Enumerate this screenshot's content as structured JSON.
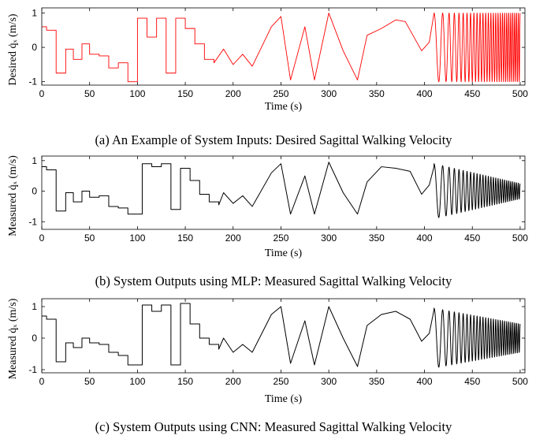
{
  "chart_data": [
    {
      "type": "line",
      "caption": "(a) An Example of System Inputs: Desired Sagittal Walking Velocity",
      "xlabel": "Time (s)",
      "ylabel": "Desired q̇ₓ (m/s)",
      "xlim": [
        0,
        505
      ],
      "ylim": [
        -1.1,
        1.15
      ],
      "xticks": [
        0,
        50,
        100,
        150,
        200,
        250,
        300,
        350,
        400,
        450,
        500
      ],
      "yticks": [
        -1,
        0,
        1
      ],
      "grid": false,
      "series": [
        {
          "color": "#ff0000",
          "segments": [
            {
              "kind": "steps",
              "points": [
                [
                  0,
                  0.6
                ],
                [
                  5,
                  0.5
                ],
                [
                  15,
                  -0.75
                ],
                [
                  25,
                  -0.05
                ],
                [
                  33,
                  -0.35
                ],
                [
                  42,
                  0.1
                ],
                [
                  50,
                  -0.2
                ],
                [
                  60,
                  -0.25
                ],
                [
                  70,
                  -0.6
                ],
                [
                  80,
                  -0.45
                ],
                [
                  90,
                  -1.0
                ],
                [
                  100,
                  0.85
                ],
                [
                  110,
                  0.3
                ],
                [
                  120,
                  0.85
                ],
                [
                  130,
                  -0.75
                ],
                [
                  140,
                  0.85
                ],
                [
                  150,
                  0.55
                ],
                [
                  160,
                  0.1
                ],
                [
                  170,
                  -0.35
                ],
                [
                  180,
                  -0.45
                ]
              ]
            },
            {
              "kind": "polyline",
              "points": [
                [
                  190,
                  -0.05
                ],
                [
                  200,
                  -0.5
                ],
                [
                  210,
                  -0.2
                ],
                [
                  220,
                  -0.55
                ],
                [
                  240,
                  0.6
                ],
                [
                  250,
                  0.9
                ],
                [
                  260,
                  -0.95
                ],
                [
                  275,
                  0.6
                ],
                [
                  285,
                  -0.95
                ],
                [
                  300,
                  1.0
                ],
                [
                  315,
                  -0.1
                ],
                [
                  330,
                  -0.95
                ],
                [
                  340,
                  0.35
                ],
                [
                  355,
                  0.55
                ],
                [
                  370,
                  0.8
                ],
                [
                  380,
                  0.75
                ],
                [
                  397,
                  -0.1
                ],
                [
                  405,
                  0.15
                ],
                [
                  410,
                  1.0
                ]
              ]
            },
            {
              "kind": "chirp",
              "t0": 410,
              "t1": 500,
              "amplitude": 1.0,
              "cycles": 28
            }
          ]
        }
      ]
    },
    {
      "type": "line",
      "caption": "(b) System Outputs using MLP: Measured Sagittal Walking Velocity",
      "xlabel": "Time (s)",
      "ylabel": "Measured q̇ₓ (m/s)",
      "xlim": [
        0,
        505
      ],
      "ylim": [
        -1.25,
        1.15
      ],
      "xticks": [
        0,
        50,
        100,
        150,
        200,
        250,
        300,
        350,
        400,
        450,
        500
      ],
      "yticks": [
        -1,
        0,
        1
      ],
      "grid": false,
      "series": [
        {
          "color": "#000000",
          "segments": [
            {
              "kind": "steps",
              "points": [
                [
                  0,
                  0.8
                ],
                [
                  5,
                  0.7
                ],
                [
                  15,
                  -0.65
                ],
                [
                  25,
                  -0.05
                ],
                [
                  33,
                  -0.35
                ],
                [
                  42,
                  0.0
                ],
                [
                  50,
                  -0.2
                ],
                [
                  60,
                  -0.15
                ],
                [
                  70,
                  -0.5
                ],
                [
                  80,
                  -0.55
                ],
                [
                  90,
                  -0.75
                ],
                [
                  105,
                  0.9
                ],
                [
                  115,
                  0.8
                ],
                [
                  125,
                  0.9
                ],
                [
                  135,
                  -0.6
                ],
                [
                  145,
                  0.75
                ],
                [
                  155,
                  0.35
                ],
                [
                  165,
                  -0.1
                ],
                [
                  175,
                  -0.35
                ],
                [
                  185,
                  -0.45
                ]
              ]
            },
            {
              "kind": "polyline",
              "points": [
                [
                  190,
                  -0.05
                ],
                [
                  200,
                  -0.4
                ],
                [
                  210,
                  -0.15
                ],
                [
                  220,
                  -0.5
                ],
                [
                  240,
                  0.6
                ],
                [
                  250,
                  0.9
                ],
                [
                  260,
                  -0.75
                ],
                [
                  275,
                  0.5
                ],
                [
                  285,
                  -0.75
                ],
                [
                  300,
                  0.95
                ],
                [
                  315,
                  -0.05
                ],
                [
                  330,
                  -0.75
                ],
                [
                  340,
                  0.3
                ],
                [
                  355,
                  0.8
                ],
                [
                  370,
                  0.75
                ],
                [
                  385,
                  0.65
                ],
                [
                  397,
                  -0.1
                ],
                [
                  405,
                  0.2
                ],
                [
                  410,
                  0.8
                ]
              ]
            },
            {
              "kind": "chirp",
              "t0": 410,
              "t1": 500,
              "amplitude": 0.9,
              "amplitude_end": 0.25,
              "cycles": 28
            }
          ]
        }
      ]
    },
    {
      "type": "line",
      "caption": "(c) System Outputs using CNN: Measured Sagittal Walking Velocity",
      "xlabel": "Time (s)",
      "ylabel": "Measured q̇ₓ (m/s)",
      "xlim": [
        0,
        505
      ],
      "ylim": [
        -1.1,
        1.25
      ],
      "xticks": [
        0,
        50,
        100,
        150,
        200,
        250,
        300,
        350,
        400,
        450,
        500
      ],
      "yticks": [
        -1,
        0,
        1
      ],
      "grid": false,
      "series": [
        {
          "color": "#000000",
          "segments": [
            {
              "kind": "steps",
              "points": [
                [
                  0,
                  0.7
                ],
                [
                  5,
                  0.6
                ],
                [
                  15,
                  -0.75
                ],
                [
                  25,
                  -0.15
                ],
                [
                  33,
                  -0.3
                ],
                [
                  42,
                  0.0
                ],
                [
                  50,
                  -0.15
                ],
                [
                  60,
                  -0.2
                ],
                [
                  70,
                  -0.45
                ],
                [
                  80,
                  -0.55
                ],
                [
                  90,
                  -0.85
                ],
                [
                  105,
                  1.05
                ],
                [
                  115,
                  0.85
                ],
                [
                  125,
                  1.05
                ],
                [
                  135,
                  -0.85
                ],
                [
                  145,
                  1.1
                ],
                [
                  155,
                  0.45
                ],
                [
                  165,
                  0.0
                ],
                [
                  175,
                  -0.2
                ],
                [
                  185,
                  -0.35
                ]
              ]
            },
            {
              "kind": "polyline",
              "points": [
                [
                  190,
                  0.0
                ],
                [
                  200,
                  -0.45
                ],
                [
                  210,
                  -0.2
                ],
                [
                  220,
                  -0.45
                ],
                [
                  240,
                  0.75
                ],
                [
                  250,
                  1.0
                ],
                [
                  260,
                  -0.8
                ],
                [
                  275,
                  0.55
                ],
                [
                  285,
                  -0.85
                ],
                [
                  300,
                  1.0
                ],
                [
                  315,
                  0.0
                ],
                [
                  330,
                  -0.9
                ],
                [
                  340,
                  0.4
                ],
                [
                  355,
                  0.75
                ],
                [
                  370,
                  0.85
                ],
                [
                  385,
                  0.6
                ],
                [
                  397,
                  -0.1
                ],
                [
                  405,
                  0.15
                ],
                [
                  410,
                  0.9
                ]
              ]
            },
            {
              "kind": "chirp",
              "t0": 410,
              "t1": 500,
              "amplitude": 0.95,
              "amplitude_end": 0.45,
              "cycles": 28
            }
          ]
        }
      ]
    }
  ]
}
